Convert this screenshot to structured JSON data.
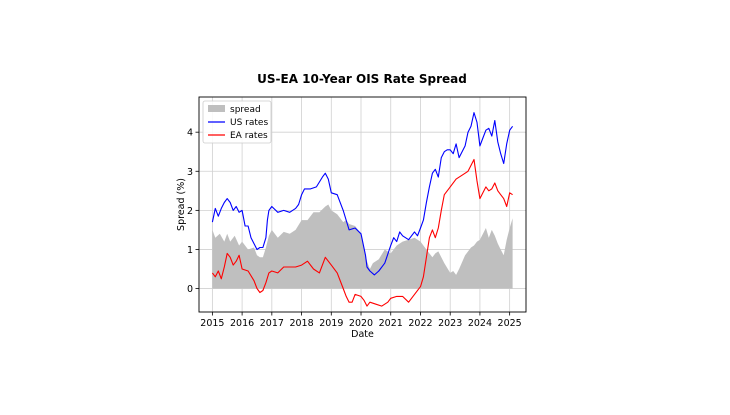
{
  "chart_data": {
    "type": "line",
    "title": "US-EA 10-Year OIS Rate Spread",
    "xlabel": "Date",
    "ylabel": "Spread (%)",
    "x_ticks": [
      "2015",
      "2016",
      "2017",
      "2018",
      "2019",
      "2020",
      "2021",
      "2022",
      "2023",
      "2024",
      "2025"
    ],
    "y_ticks": [
      "0",
      "1",
      "2",
      "3",
      "4"
    ],
    "xlim": [
      2014.55,
      2025.55
    ],
    "ylim": [
      -0.6,
      4.9
    ],
    "grid": true,
    "legend_position": "top-left",
    "series": [
      {
        "name": "spread",
        "kind": "area",
        "color": "#bfbfbf",
        "x": [
          2015.0,
          2015.1,
          2015.25,
          2015.4,
          2015.5,
          2015.6,
          2015.75,
          2015.9,
          2016.0,
          2016.2,
          2016.4,
          2016.5,
          2016.6,
          2016.7,
          2016.8,
          2016.9,
          2017.0,
          2017.2,
          2017.4,
          2017.6,
          2017.8,
          2018.0,
          2018.2,
          2018.4,
          2018.6,
          2018.8,
          2018.9,
          2019.0,
          2019.2,
          2019.4,
          2019.5,
          2019.6,
          2019.8,
          2020.0,
          2020.15,
          2020.2,
          2020.25,
          2020.3,
          2020.4,
          2020.6,
          2020.8,
          2021.0,
          2021.2,
          2021.4,
          2021.6,
          2021.8,
          2022.0,
          2022.2,
          2022.4,
          2022.5,
          2022.6,
          2022.8,
          2023.0,
          2023.1,
          2023.2,
          2023.3,
          2023.5,
          2023.7,
          2023.8,
          2023.9,
          2024.0,
          2024.2,
          2024.3,
          2024.4,
          2024.5,
          2024.6,
          2024.7,
          2024.8,
          2024.9,
          2025.0,
          2025.1
        ],
        "values": [
          1.5,
          1.3,
          1.4,
          1.2,
          1.4,
          1.2,
          1.35,
          1.1,
          1.2,
          1.0,
          1.05,
          0.85,
          0.8,
          0.8,
          1.05,
          1.35,
          1.5,
          1.3,
          1.45,
          1.4,
          1.5,
          1.75,
          1.75,
          1.95,
          1.95,
          2.1,
          2.15,
          2.0,
          1.9,
          1.7,
          1.75,
          1.65,
          1.6,
          1.4,
          0.9,
          0.7,
          0.6,
          0.5,
          0.65,
          0.75,
          1.0,
          0.9,
          1.1,
          1.2,
          1.25,
          1.3,
          1.2,
          1.0,
          0.8,
          0.9,
          0.95,
          0.65,
          0.4,
          0.45,
          0.35,
          0.5,
          0.85,
          1.05,
          1.1,
          1.2,
          1.25,
          1.55,
          1.3,
          1.5,
          1.35,
          1.15,
          1.0,
          0.85,
          1.25,
          1.55,
          1.8
        ]
      },
      {
        "name": "US rates",
        "kind": "line",
        "color": "#0000ff",
        "x": [
          2015.0,
          2015.1,
          2015.2,
          2015.3,
          2015.4,
          2015.5,
          2015.6,
          2015.7,
          2015.8,
          2015.9,
          2016.0,
          2016.1,
          2016.2,
          2016.3,
          2016.4,
          2016.5,
          2016.6,
          2016.7,
          2016.8,
          2016.85,
          2016.9,
          2017.0,
          2017.2,
          2017.4,
          2017.6,
          2017.8,
          2017.9,
          2018.0,
          2018.1,
          2018.3,
          2018.5,
          2018.7,
          2018.8,
          2018.9,
          2019.0,
          2019.2,
          2019.4,
          2019.6,
          2019.8,
          2020.0,
          2020.15,
          2020.2,
          2020.3,
          2020.45,
          2020.6,
          2020.8,
          2021.0,
          2021.1,
          2021.2,
          2021.3,
          2021.4,
          2021.6,
          2021.8,
          2021.9,
          2022.0,
          2022.1,
          2022.2,
          2022.3,
          2022.4,
          2022.5,
          2022.6,
          2022.7,
          2022.8,
          2022.9,
          2023.0,
          2023.1,
          2023.2,
          2023.3,
          2023.4,
          2023.5,
          2023.6,
          2023.7,
          2023.8,
          2023.9,
          2024.0,
          2024.1,
          2024.2,
          2024.3,
          2024.4,
          2024.5,
          2024.6,
          2024.7,
          2024.8,
          2024.9,
          2025.0,
          2025.1
        ],
        "values": [
          1.7,
          2.05,
          1.85,
          2.05,
          2.2,
          2.3,
          2.2,
          2.0,
          2.1,
          1.95,
          2.0,
          1.6,
          1.6,
          1.3,
          1.15,
          1.0,
          1.05,
          1.05,
          1.3,
          1.75,
          2.0,
          2.1,
          1.95,
          2.0,
          1.95,
          2.05,
          2.15,
          2.4,
          2.55,
          2.55,
          2.6,
          2.85,
          2.95,
          2.8,
          2.45,
          2.4,
          2.0,
          1.5,
          1.55,
          1.4,
          0.85,
          0.55,
          0.45,
          0.35,
          0.45,
          0.65,
          1.1,
          1.3,
          1.2,
          1.45,
          1.35,
          1.25,
          1.45,
          1.35,
          1.55,
          1.75,
          2.2,
          2.6,
          2.95,
          3.05,
          2.85,
          3.35,
          3.5,
          3.55,
          3.55,
          3.45,
          3.7,
          3.35,
          3.5,
          3.65,
          4.0,
          4.15,
          4.5,
          4.25,
          3.65,
          3.85,
          4.05,
          4.1,
          3.9,
          4.3,
          3.75,
          3.45,
          3.2,
          3.7,
          4.05,
          4.15
        ]
      },
      {
        "name": "EA rates",
        "kind": "line",
        "color": "#ff0000",
        "x": [
          2015.0,
          2015.1,
          2015.2,
          2015.3,
          2015.4,
          2015.5,
          2015.6,
          2015.7,
          2015.8,
          2015.9,
          2016.0,
          2016.2,
          2016.4,
          2016.5,
          2016.6,
          2016.7,
          2016.8,
          2016.9,
          2017.0,
          2017.2,
          2017.4,
          2017.6,
          2017.8,
          2018.0,
          2018.2,
          2018.4,
          2018.6,
          2018.8,
          2019.0,
          2019.2,
          2019.4,
          2019.5,
          2019.6,
          2019.7,
          2019.8,
          2020.0,
          2020.1,
          2020.2,
          2020.3,
          2020.5,
          2020.7,
          2020.9,
          2021.0,
          2021.2,
          2021.4,
          2021.6,
          2021.8,
          2022.0,
          2022.1,
          2022.2,
          2022.3,
          2022.4,
          2022.5,
          2022.6,
          2022.7,
          2022.8,
          2023.0,
          2023.2,
          2023.4,
          2023.6,
          2023.8,
          2023.9,
          2024.0,
          2024.1,
          2024.2,
          2024.3,
          2024.4,
          2024.5,
          2024.6,
          2024.7,
          2024.8,
          2024.9,
          2025.0,
          2025.1
        ],
        "values": [
          0.4,
          0.3,
          0.45,
          0.25,
          0.55,
          0.9,
          0.8,
          0.6,
          0.7,
          0.85,
          0.5,
          0.45,
          0.2,
          0.0,
          -0.1,
          -0.05,
          0.15,
          0.4,
          0.45,
          0.4,
          0.55,
          0.55,
          0.55,
          0.6,
          0.7,
          0.5,
          0.4,
          0.8,
          0.6,
          0.4,
          0.0,
          -0.2,
          -0.35,
          -0.35,
          -0.15,
          -0.2,
          -0.3,
          -0.45,
          -0.35,
          -0.4,
          -0.45,
          -0.35,
          -0.25,
          -0.2,
          -0.2,
          -0.35,
          -0.15,
          0.05,
          0.3,
          0.8,
          1.3,
          1.5,
          1.3,
          1.55,
          2.0,
          2.4,
          2.6,
          2.8,
          2.9,
          3.0,
          3.3,
          2.75,
          2.3,
          2.45,
          2.6,
          2.5,
          2.55,
          2.7,
          2.5,
          2.4,
          2.3,
          2.1,
          2.45,
          2.4
        ]
      }
    ]
  }
}
